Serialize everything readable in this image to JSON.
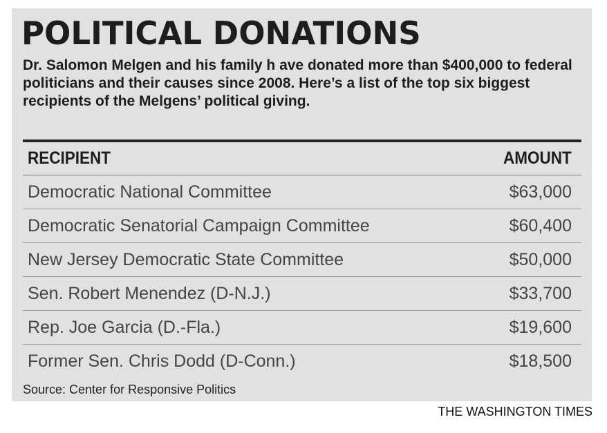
{
  "title": "POLITICAL DONATIONS",
  "subtitle": "Dr. Salomon Melgen and his family h ave donated more than $400,000 to federal politicians and their causes since 2008. Here’s a list of the top six biggest recipients of the Melgens’ political giving.",
  "source": "Source: Center for Responsive Politics",
  "credit": "THE WASHINGTON TIMES",
  "chart_data": {
    "type": "table",
    "columns": [
      "RECIPIENT",
      "AMOUNT"
    ],
    "rows": [
      {
        "recipient": "Democratic National Committee",
        "amount": "$63,000"
      },
      {
        "recipient": "Democratic Senatorial Campaign Committee",
        "amount": "$60,400"
      },
      {
        "recipient": "New Jersey Democratic State Committee",
        "amount": "$50,000"
      },
      {
        "recipient": "Sen. Robert Menendez (D-N.J.)",
        "amount": "$33,700"
      },
      {
        "recipient": "Rep. Joe Garcia (D.-Fla.)",
        "amount": "$19,600"
      },
      {
        "recipient": "Former Sen. Chris Dodd (D-Conn.)",
        "amount": "$18,500"
      }
    ]
  }
}
